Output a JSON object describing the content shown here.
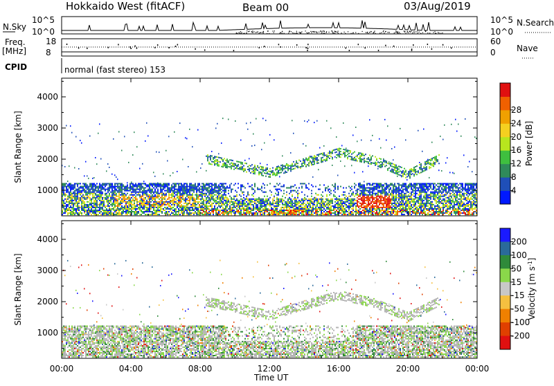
{
  "header": {
    "station": "Hokkaido West (fitACF)",
    "beam": "Beam 00",
    "date": "03/Aug/2019"
  },
  "sky_panel": {
    "left_label": "N.Sky",
    "right_label": "N.Search",
    "ticks_left": [
      "10^5",
      "10^0"
    ],
    "ticks_right": [
      "10^5",
      "10^0"
    ]
  },
  "freq_panel": {
    "left_label_1": "Freq.",
    "left_label_2": "[MHz]",
    "right_label": "Nave",
    "ticks_left": [
      "18",
      "8"
    ],
    "ticks_right": [
      "60",
      "0"
    ]
  },
  "cpid": {
    "label": "CPID",
    "text": "normal (fast stereo) 153"
  },
  "chart_data": [
    {
      "type": "heatmap",
      "quantity": "Power",
      "ylabel": "Slant Range [km]",
      "yticks": [
        1000,
        2000,
        3000,
        4000
      ],
      "ylim": [
        180,
        4600
      ],
      "xlim_hours": [
        0,
        24
      ],
      "colorbar": {
        "label": "Power [dB]",
        "ticks": [
          "4",
          "8",
          "12",
          "16",
          "20",
          "24",
          "28"
        ],
        "colors": [
          "#0019ff",
          "#1f4fb8",
          "#2f8a5a",
          "#3fbf3f",
          "#b8e61e",
          "#f5d020",
          "#f0a000",
          "#f06000",
          "#e01010"
        ]
      },
      "bands_km": [
        {
          "t0": 0,
          "t1": 24,
          "r0": 200,
          "r1": 1200,
          "level": "low-to-high"
        },
        {
          "t0": 8.5,
          "t1": 21.5,
          "r0": 1300,
          "r1": 2300,
          "level": "moderate"
        }
      ]
    },
    {
      "type": "heatmap",
      "quantity": "Velocity",
      "xlabel": "Time UT",
      "ylabel": "Slant Range [km]",
      "xticks": [
        "00:00",
        "04:00",
        "08:00",
        "12:00",
        "16:00",
        "20:00",
        "00:00"
      ],
      "yticks": [
        1000,
        2000,
        3000,
        4000
      ],
      "ylim": [
        180,
        4600
      ],
      "xlim_hours": [
        0,
        24
      ],
      "colorbar": {
        "label": "Velocity [m s^-1]",
        "ticks": [
          "200",
          "100",
          "50",
          "15",
          "-15",
          "-50",
          "-100",
          "-200"
        ],
        "colors": [
          "#1a1aff",
          "#2a6a9a",
          "#2f8a3a",
          "#8ad84a",
          "#c8c8c8",
          "#f5c040",
          "#f08000",
          "#e04000",
          "#e01010"
        ]
      }
    }
  ],
  "colors": {
    "ground_scatter": "#b4b4b4"
  }
}
